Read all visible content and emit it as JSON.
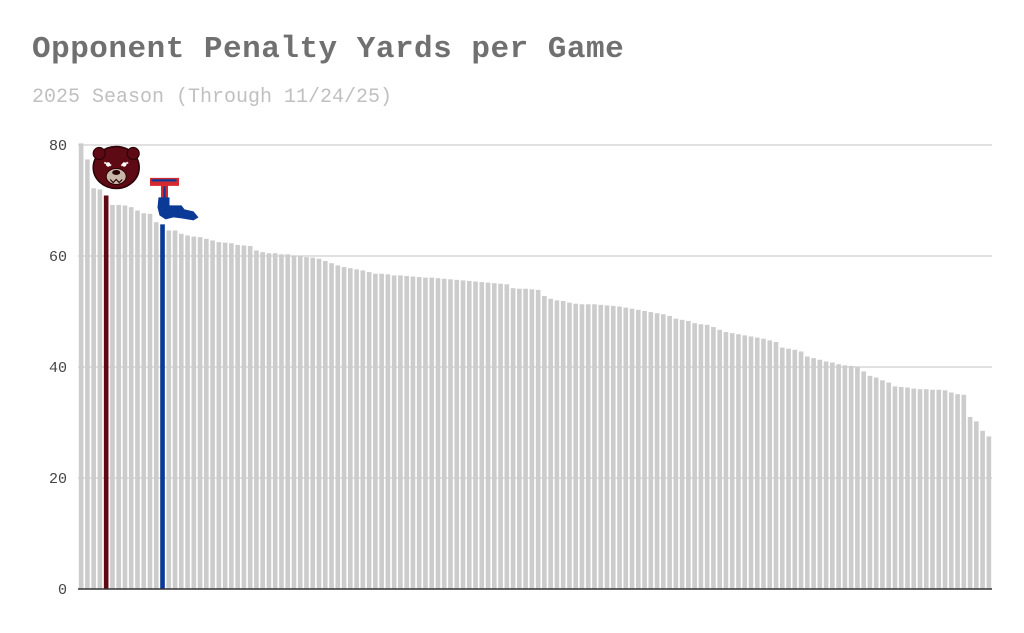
{
  "header": {
    "title": "Opponent Penalty Yards per Game",
    "subtitle": "2025 Season (Through 11/24/25)"
  },
  "colors": {
    "default_bar": "#cccccc",
    "highlight_maroon": "#5e0a14",
    "highlight_blue": "#0a3a96",
    "grid": "#cfcfcf",
    "axis_text": "#444444"
  },
  "icons": {
    "maroon_bar_logo": "bear-head-logo-icon",
    "blue_bar_logo": "latech-t-logo-icon"
  },
  "chart_data": {
    "type": "bar",
    "title": "Opponent Penalty Yards per Game",
    "subtitle": "2025 Season (Through 11/24/25)",
    "xlabel": "",
    "ylabel": "",
    "ylim": [
      0,
      80
    ],
    "yticks": [
      0,
      20,
      40,
      60,
      80
    ],
    "grid": true,
    "highlight": [
      {
        "index": 4,
        "color": "#5e0a14",
        "icon": "bear-head-logo-icon"
      },
      {
        "index": 13,
        "color": "#0a3a96",
        "icon": "latech-t-logo-icon"
      }
    ],
    "values": [
      80.3,
      77.4,
      72.2,
      72.0,
      70.9,
      69.2,
      69.2,
      69.1,
      68.8,
      68.2,
      67.7,
      67.6,
      66.1,
      65.7,
      64.6,
      64.6,
      64.0,
      63.7,
      63.5,
      63.4,
      63.1,
      62.8,
      62.5,
      62.4,
      62.3,
      62.0,
      61.9,
      61.8,
      61.0,
      60.7,
      60.5,
      60.5,
      60.3,
      60.3,
      60.1,
      60.0,
      59.8,
      59.7,
      59.5,
      59.1,
      58.7,
      58.3,
      58.0,
      57.8,
      57.6,
      57.4,
      57.1,
      56.8,
      56.8,
      56.7,
      56.5,
      56.5,
      56.4,
      56.3,
      56.2,
      56.1,
      56.1,
      56.0,
      55.9,
      55.8,
      55.7,
      55.6,
      55.5,
      55.4,
      55.3,
      55.2,
      55.1,
      55.0,
      54.9,
      54.2,
      54.1,
      54.1,
      54.0,
      53.9,
      52.8,
      52.3,
      52.0,
      51.9,
      51.6,
      51.4,
      51.3,
      51.3,
      51.3,
      51.2,
      51.1,
      51.0,
      50.9,
      50.7,
      50.5,
      50.3,
      50.1,
      49.9,
      49.7,
      49.5,
      49.2,
      48.7,
      48.5,
      48.3,
      47.9,
      47.7,
      47.6,
      47.2,
      46.7,
      46.3,
      46.1,
      45.9,
      45.7,
      45.5,
      45.3,
      45.1,
      44.8,
      44.5,
      43.5,
      43.3,
      43.1,
      42.8,
      41.9,
      41.6,
      41.3,
      41.0,
      40.8,
      40.5,
      40.3,
      40.2,
      40.0,
      39.2,
      38.4,
      38.1,
      37.6,
      37.2,
      36.5,
      36.4,
      36.3,
      36.1,
      36.0,
      36.0,
      35.9,
      35.9,
      35.8,
      35.4,
      35.1,
      35.0,
      31.0,
      30.2,
      28.5,
      27.5
    ]
  }
}
